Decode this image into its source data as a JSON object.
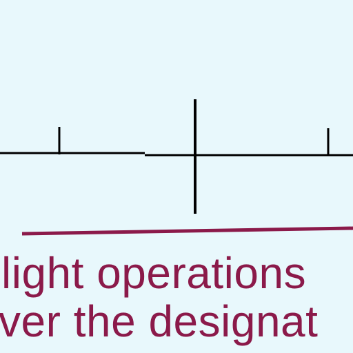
{
  "colors": {
    "background": "#e8f8fc",
    "line": "#000000",
    "accent": "#8b1a4a"
  },
  "caption": {
    "line1": "light operations",
    "line2": "ver the designat"
  }
}
